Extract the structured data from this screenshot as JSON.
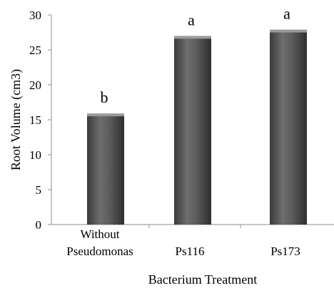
{
  "chart_data": {
    "type": "bar",
    "categories": [
      "Without Pseudomonas",
      "Ps116",
      "Ps173"
    ],
    "category_lines": [
      [
        "Without",
        "Pseudomonas"
      ],
      [
        "Ps116"
      ],
      [
        "Ps173"
      ]
    ],
    "values": [
      15.6,
      26.7,
      27.6
    ],
    "significance_letters": [
      "b",
      "a",
      "a"
    ],
    "xlabel": "Bacterium Treatment",
    "ylabel": "Root Volume (cm3)",
    "ylim": [
      0,
      30
    ],
    "yticks": [
      0,
      5,
      10,
      15,
      20,
      25,
      30
    ],
    "grid": false,
    "legend": "none",
    "bar_color": "#595959"
  }
}
